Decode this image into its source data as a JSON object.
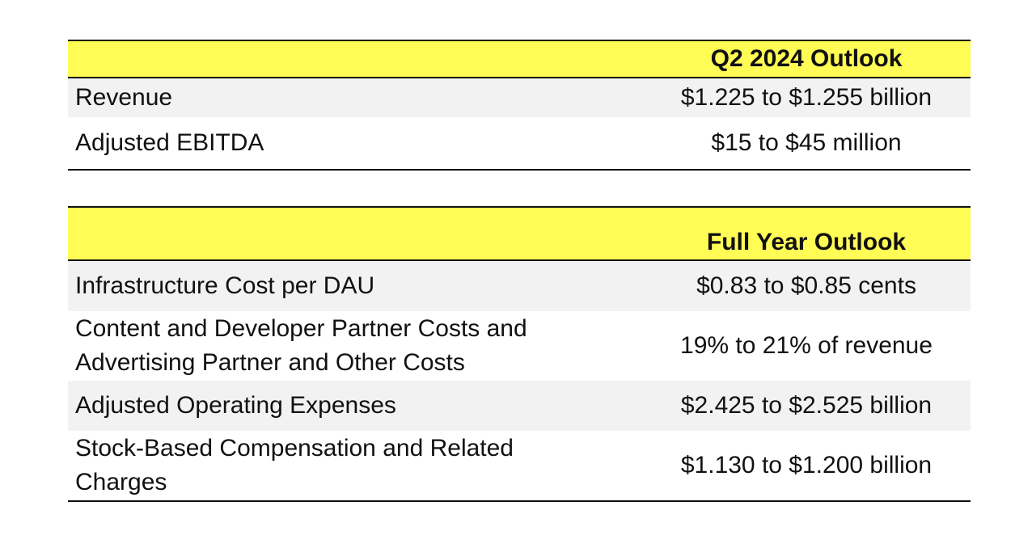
{
  "q2_table": {
    "header": "Q2 2024 Outlook",
    "rows": [
      {
        "label": "Revenue",
        "value": "$1.225 to $1.255 billion"
      },
      {
        "label": "Adjusted EBITDA",
        "value": "$15 to $45 million"
      }
    ]
  },
  "fy_table": {
    "header": "Full Year Outlook",
    "rows": [
      {
        "label": "Infrastructure Cost per DAU",
        "value": "$0.83 to $0.85 cents"
      },
      {
        "label_line1": "Content and Developer Partner Costs and",
        "label_line2": "Advertising Partner and Other Costs",
        "value": "19% to 21% of revenue"
      },
      {
        "label": "Adjusted Operating Expenses",
        "value": "$2.425 to $2.525 billion"
      },
      {
        "label_line1": "Stock-Based Compensation and Related",
        "label_line2": "Charges",
        "value": "$1.130 to $1.200 billion"
      }
    ]
  },
  "colors": {
    "header_background": "#fffc55",
    "shaded_row": "#f2f2f2",
    "rule": "#111111"
  }
}
